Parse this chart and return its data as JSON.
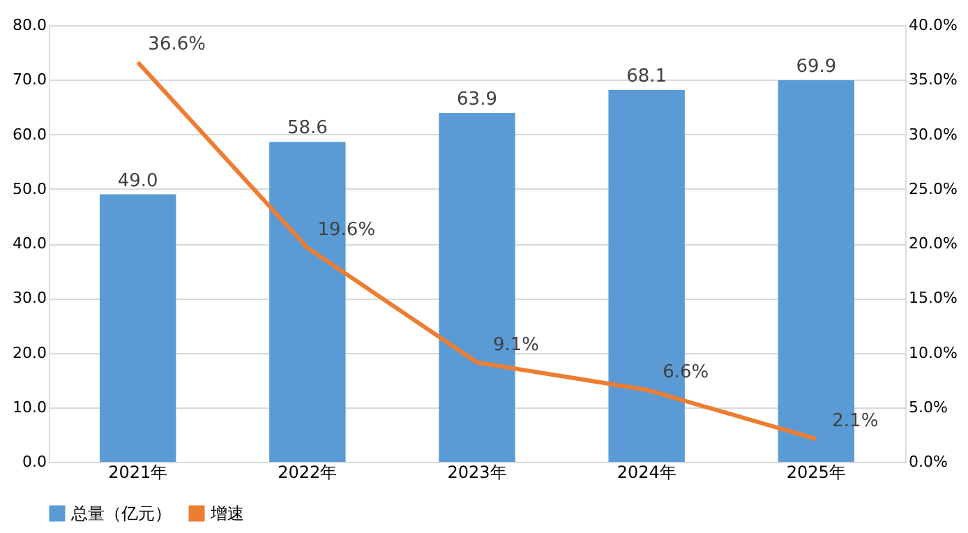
{
  "chart_data": {
    "type": "bar",
    "categories": [
      "2021年",
      "2022年",
      "2023年",
      "2024年",
      "2025年"
    ],
    "series": [
      {
        "name": "总量（亿元）",
        "color": "#5b9bd5",
        "values": [
          49.0,
          58.6,
          63.9,
          68.1,
          69.9
        ],
        "value_labels": [
          "49.0",
          "58.6",
          "63.9",
          "68.1",
          "69.9"
        ]
      },
      {
        "name": "增速",
        "type": "line",
        "axis": "y2",
        "color": "#ed7d31",
        "values": [
          36.6,
          19.6,
          9.1,
          6.6,
          2.1
        ],
        "value_labels": [
          "36.6%",
          "19.6%",
          "9.1%",
          "6.6%",
          "2.1%"
        ]
      }
    ],
    "ylim": [
      0,
      80
    ],
    "yticks": [
      {
        "value": 0,
        "label": "0.0"
      },
      {
        "value": 10,
        "label": "10.0"
      },
      {
        "value": 20,
        "label": "20.0"
      },
      {
        "value": 30,
        "label": "30.0"
      },
      {
        "value": 40,
        "label": "40.0"
      },
      {
        "value": 50,
        "label": "50.0"
      },
      {
        "value": 60,
        "label": "60.0"
      },
      {
        "value": 70,
        "label": "70.0"
      },
      {
        "value": 80,
        "label": "80.0"
      }
    ],
    "y2lim": [
      0,
      40
    ],
    "y2ticks": [
      {
        "value": 0,
        "label": "0.0%"
      },
      {
        "value": 5,
        "label": "5.0%"
      },
      {
        "value": 10,
        "label": "10.0%"
      },
      {
        "value": 15,
        "label": "15.0%"
      },
      {
        "value": 20,
        "label": "20.0%"
      },
      {
        "value": 25,
        "label": "25.0%"
      },
      {
        "value": 30,
        "label": "30.0%"
      },
      {
        "value": 35,
        "label": "35.0%"
      },
      {
        "value": 40,
        "label": "40.0%"
      }
    ],
    "grid": "y",
    "legend": "bottom",
    "marker": "none",
    "line_style": "solid"
  }
}
